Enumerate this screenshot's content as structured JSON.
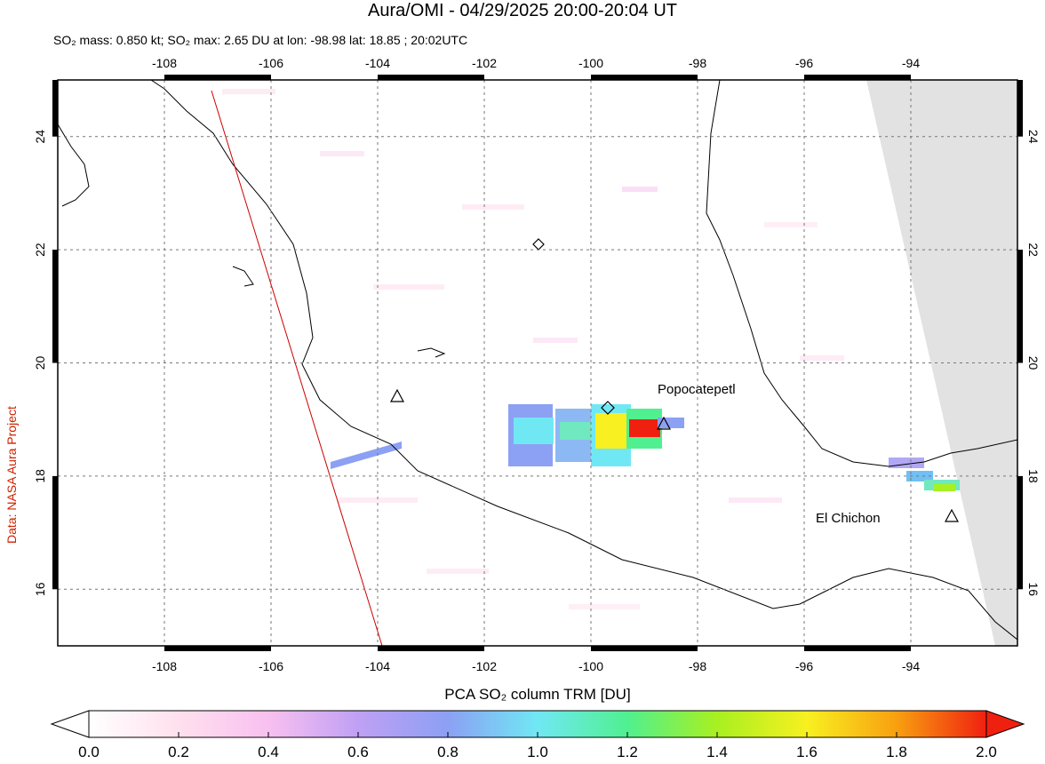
{
  "title": "Aura/OMI - 04/29/2025 20:00-20:04 UT",
  "subtitle": "SO₂ mass: 0.850 kt; SO₂ max: 2.65 DU at lon: -98.98 lat: 18.85 ; 20:02UTC",
  "map": {
    "xlim": [
      -110,
      -92
    ],
    "ylim": [
      15,
      25
    ],
    "xticks": [
      -108,
      -106,
      -104,
      -102,
      -100,
      -98,
      -96,
      -94
    ],
    "yticks": [
      16,
      18,
      20,
      22,
      24
    ],
    "labels": [
      "Popocatepetl",
      "El Chichon"
    ]
  },
  "colorbar": {
    "title": "PCA SO₂ column TRM [DU]",
    "lim": [
      0,
      2
    ],
    "ticks": [
      {
        "value": 0,
        "label": "0.0"
      },
      {
        "value": 0.2,
        "label": "0.2"
      },
      {
        "value": 0.4,
        "label": "0.4"
      },
      {
        "value": 0.6,
        "label": "0.6"
      },
      {
        "value": 0.8,
        "label": "0.8"
      },
      {
        "value": 1,
        "label": "1.0"
      },
      {
        "value": 1.2,
        "label": "1.2"
      },
      {
        "value": 1.4,
        "label": "1.4"
      },
      {
        "value": 1.6,
        "label": "1.6"
      },
      {
        "value": 1.8,
        "label": "1.8"
      },
      {
        "value": 2,
        "label": "2.0"
      }
    ]
  },
  "credit": "Data: NASA Aura Project"
}
